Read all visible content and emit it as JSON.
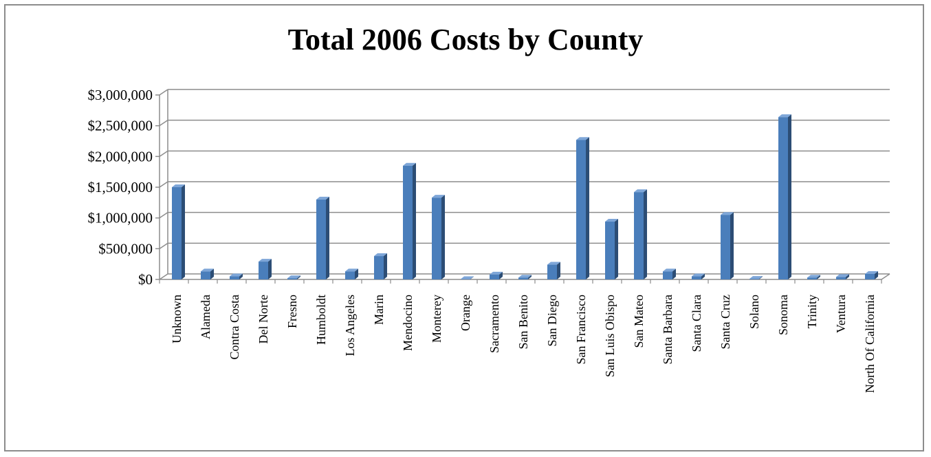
{
  "chart_data": {
    "type": "bar",
    "title": "Total 2006 Costs by County",
    "xlabel": "",
    "ylabel": "",
    "ylim": [
      0,
      3000000
    ],
    "yticks": [
      0,
      500000,
      1000000,
      1500000,
      2000000,
      2500000,
      3000000
    ],
    "ytick_labels": [
      "$0",
      "$500,000",
      "$1,000,000",
      "$1,500,000",
      "$2,000,000",
      "$2,500,000",
      "$3,000,000"
    ],
    "grid": true,
    "legend": "none",
    "categories": [
      "Unknown",
      "Alameda",
      "Contra Costa",
      "Del Norte",
      "Fresno",
      "Humboldt",
      "Los Angeles",
      "Marin",
      "Mendocino",
      "Monterey",
      "Orange",
      "Sacramento",
      "San Benito",
      "San Diego",
      "San Francisco",
      "San Luis Obispo",
      "San Mateo",
      "Santa Barbara",
      "Santa Clara",
      "Santa Cruz",
      "Solano",
      "Sonoma",
      "Trinity",
      "Ventura",
      "North Of California"
    ],
    "values": [
      1500000,
      130000,
      50000,
      290000,
      20000,
      1300000,
      130000,
      380000,
      1850000,
      1330000,
      5000,
      80000,
      30000,
      240000,
      2270000,
      940000,
      1420000,
      130000,
      50000,
      1050000,
      10000,
      2640000,
      30000,
      40000,
      90000
    ],
    "colors": {
      "bar_front": "#4a7ebb",
      "bar_side": "#2c4d75",
      "bar_top": "#7ea6d8",
      "grid": "#8c8c8c"
    }
  }
}
